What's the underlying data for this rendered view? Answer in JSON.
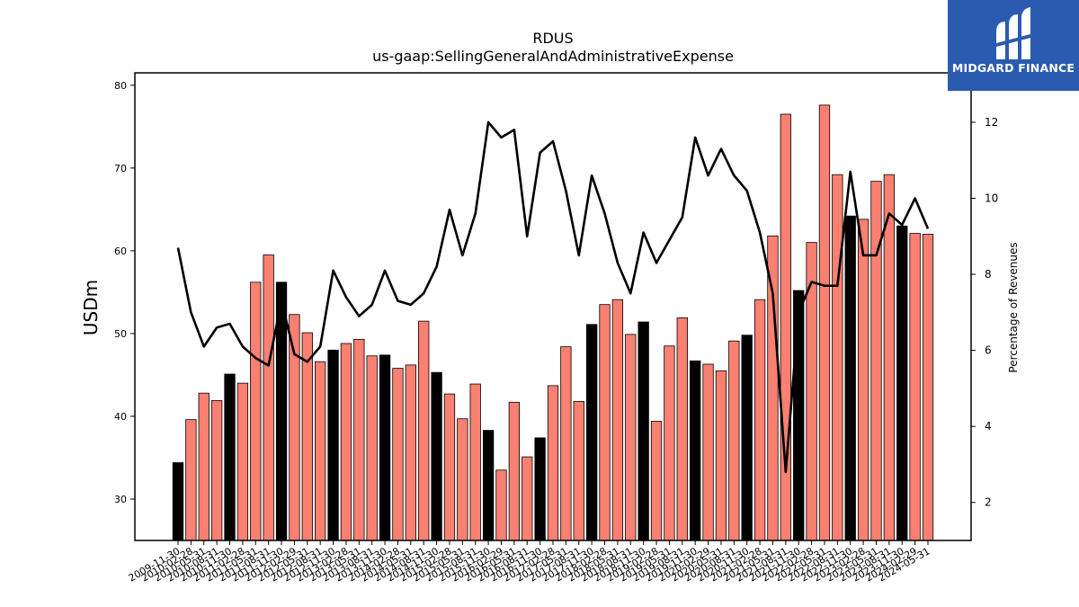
{
  "chart_data": {
    "type": "bar",
    "title": "RDUS",
    "subtitle": "us-gaap:SellingGeneralAndAdministrativeExpense",
    "ylabel": "USDm",
    "y2label": "Percentage of Revenues",
    "ylim": [
      25,
      81.5
    ],
    "y2lim": [
      1,
      13.3
    ],
    "yticks": [
      30,
      40,
      50,
      60,
      70,
      80
    ],
    "y2ticks": [
      2,
      4,
      6,
      8,
      10,
      12
    ],
    "categories": [
      "2009-11-30",
      "2010-02-28",
      "2010-05-31",
      "2010-08-31",
      "2010-11-30",
      "2011-02-28",
      "2011-05-31",
      "2011-08-31",
      "2011-11-30",
      "2012-02-29",
      "2012-05-31",
      "2012-08-31",
      "2012-11-30",
      "2013-02-28",
      "2013-05-31",
      "2013-08-31",
      "2013-11-30",
      "2014-02-28",
      "2014-05-31",
      "2014-08-31",
      "2014-11-30",
      "2015-02-28",
      "2015-05-31",
      "2015-08-31",
      "2015-11-30",
      "2016-02-29",
      "2016-05-31",
      "2016-08-31",
      "2016-11-30",
      "2017-02-28",
      "2017-05-31",
      "2017-08-31",
      "2017-11-30",
      "2018-02-28",
      "2018-05-31",
      "2018-08-31",
      "2018-11-30",
      "2019-02-28",
      "2019-05-31",
      "2019-08-31",
      "2019-11-30",
      "2020-02-29",
      "2020-05-31",
      "2020-08-31",
      "2020-11-30",
      "2021-02-28",
      "2021-05-31",
      "2021-08-31",
      "2021-11-30",
      "2022-02-28",
      "2022-05-31",
      "2022-08-31",
      "2022-11-30",
      "2023-02-28",
      "2023-05-31",
      "2023-08-31",
      "2023-11-30",
      "2024-02-29",
      "2024-05-31"
    ],
    "series": [
      {
        "kind": "bar",
        "axis": "left",
        "values": [
          34.4,
          39.6,
          42.8,
          41.9,
          45.1,
          44.0,
          56.2,
          59.5,
          56.2,
          52.3,
          50.1,
          46.6,
          48.0,
          48.8,
          49.3,
          47.3,
          47.4,
          45.8,
          46.2,
          51.5,
          45.3,
          42.7,
          39.7,
          43.9,
          38.3,
          33.5,
          41.7,
          35.1,
          37.4,
          43.7,
          48.4,
          41.8,
          51.1,
          53.5,
          54.1,
          49.9,
          51.4,
          39.4,
          48.5,
          51.9,
          46.7,
          46.3,
          45.5,
          49.1,
          49.8,
          54.1,
          61.8,
          76.5,
          55.2,
          61.0,
          77.6,
          69.2,
          64.2,
          63.8,
          68.4,
          69.2,
          63.0,
          62.1,
          62.0
        ],
        "colors": [
          "#000000",
          "#fa8072",
          "#fa8072",
          "#fa8072",
          "#000000",
          "#fa8072",
          "#fa8072",
          "#fa8072",
          "#000000",
          "#fa8072",
          "#fa8072",
          "#fa8072",
          "#000000",
          "#fa8072",
          "#fa8072",
          "#fa8072",
          "#000000",
          "#fa8072",
          "#fa8072",
          "#fa8072",
          "#000000",
          "#fa8072",
          "#fa8072",
          "#fa8072",
          "#000000",
          "#fa8072",
          "#fa8072",
          "#fa8072",
          "#000000",
          "#fa8072",
          "#fa8072",
          "#fa8072",
          "#000000",
          "#fa8072",
          "#fa8072",
          "#fa8072",
          "#000000",
          "#fa8072",
          "#fa8072",
          "#fa8072",
          "#000000",
          "#fa8072",
          "#fa8072",
          "#fa8072",
          "#000000",
          "#fa8072",
          "#fa8072",
          "#fa8072",
          "#000000",
          "#fa8072",
          "#fa8072",
          "#fa8072",
          "#000000",
          "#fa8072",
          "#fa8072",
          "#fa8072",
          "#000000",
          "#fa8072",
          "#fa8072"
        ]
      },
      {
        "kind": "line",
        "axis": "right",
        "color": "#000000",
        "values": [
          8.7,
          7.0,
          6.1,
          6.6,
          6.7,
          6.1,
          5.8,
          5.6,
          7.3,
          5.9,
          5.7,
          6.1,
          8.1,
          7.4,
          6.9,
          7.2,
          8.1,
          7.3,
          7.2,
          7.5,
          8.2,
          9.7,
          8.5,
          9.6,
          12.0,
          11.6,
          11.8,
          9.0,
          11.2,
          11.5,
          10.2,
          8.5,
          10.6,
          9.6,
          8.3,
          7.5,
          9.1,
          8.3,
          8.9,
          9.5,
          11.6,
          10.6,
          11.3,
          10.6,
          10.2,
          9.1,
          7.5,
          2.8,
          7.0,
          7.8,
          7.7,
          7.7,
          10.7,
          8.5,
          8.5,
          9.6,
          9.3,
          10.0,
          9.2
        ]
      }
    ]
  },
  "logo": {
    "text": "MIDGARD FINANCE",
    "color": "#2b5bb0"
  }
}
